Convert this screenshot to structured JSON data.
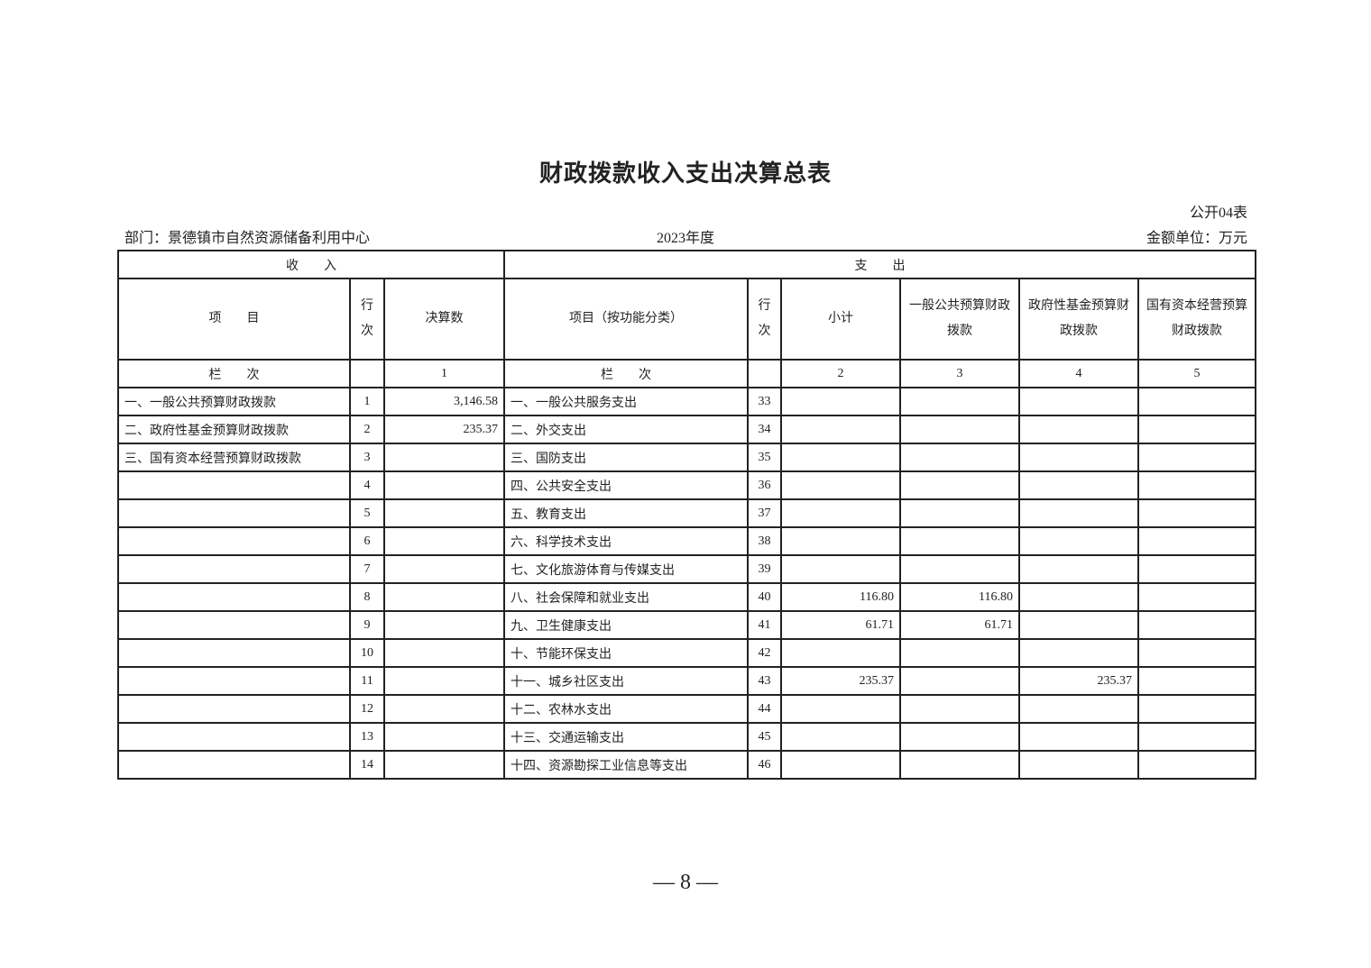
{
  "title": "财政拨款收入支出决算总表",
  "form_code": "公开04表",
  "department": "部门：景德镇市自然资源储备利用中心",
  "year": "2023年度",
  "unit": "金额单位：万元",
  "header": {
    "income": "收　　入",
    "expense": "支　　出",
    "item": "项　　目",
    "row_no": "行次",
    "amount": "决算数",
    "item_func": "项目（按功能分类）",
    "subtotal": "小计",
    "general": "一般公共预算财政拨款",
    "fund": "政府性基金预算财政拨款",
    "capital": "国有资本经营预算财政拨款",
    "col_label": "栏　　次",
    "col_nums": [
      "1",
      "2",
      "3",
      "4",
      "5"
    ]
  },
  "rows": [
    {
      "in_item": "一、一般公共预算财政拨款",
      "in_no": "1",
      "in_amt": "3,146.58",
      "ex_item": "一、一般公共服务支出",
      "ex_no": "33",
      "sub": "",
      "gen": "",
      "fund": "",
      "cap": ""
    },
    {
      "in_item": "二、政府性基金预算财政拨款",
      "in_no": "2",
      "in_amt": "235.37",
      "ex_item": "二、外交支出",
      "ex_no": "34",
      "sub": "",
      "gen": "",
      "fund": "",
      "cap": ""
    },
    {
      "in_item": "三、国有资本经营预算财政拨款",
      "in_no": "3",
      "in_amt": "",
      "ex_item": "三、国防支出",
      "ex_no": "35",
      "sub": "",
      "gen": "",
      "fund": "",
      "cap": ""
    },
    {
      "in_item": "",
      "in_no": "4",
      "in_amt": "",
      "ex_item": "四、公共安全支出",
      "ex_no": "36",
      "sub": "",
      "gen": "",
      "fund": "",
      "cap": ""
    },
    {
      "in_item": "",
      "in_no": "5",
      "in_amt": "",
      "ex_item": "五、教育支出",
      "ex_no": "37",
      "sub": "",
      "gen": "",
      "fund": "",
      "cap": ""
    },
    {
      "in_item": "",
      "in_no": "6",
      "in_amt": "",
      "ex_item": "六、科学技术支出",
      "ex_no": "38",
      "sub": "",
      "gen": "",
      "fund": "",
      "cap": ""
    },
    {
      "in_item": "",
      "in_no": "7",
      "in_amt": "",
      "ex_item": "七、文化旅游体育与传媒支出",
      "ex_no": "39",
      "sub": "",
      "gen": "",
      "fund": "",
      "cap": ""
    },
    {
      "in_item": "",
      "in_no": "8",
      "in_amt": "",
      "ex_item": "八、社会保障和就业支出",
      "ex_no": "40",
      "sub": "116.80",
      "gen": "116.80",
      "fund": "",
      "cap": ""
    },
    {
      "in_item": "",
      "in_no": "9",
      "in_amt": "",
      "ex_item": "九、卫生健康支出",
      "ex_no": "41",
      "sub": "61.71",
      "gen": "61.71",
      "fund": "",
      "cap": ""
    },
    {
      "in_item": "",
      "in_no": "10",
      "in_amt": "",
      "ex_item": "十、节能环保支出",
      "ex_no": "42",
      "sub": "",
      "gen": "",
      "fund": "",
      "cap": ""
    },
    {
      "in_item": "",
      "in_no": "11",
      "in_amt": "",
      "ex_item": "十一、城乡社区支出",
      "ex_no": "43",
      "sub": "235.37",
      "gen": "",
      "fund": "235.37",
      "cap": ""
    },
    {
      "in_item": "",
      "in_no": "12",
      "in_amt": "",
      "ex_item": "十二、农林水支出",
      "ex_no": "44",
      "sub": "",
      "gen": "",
      "fund": "",
      "cap": ""
    },
    {
      "in_item": "",
      "in_no": "13",
      "in_amt": "",
      "ex_item": "十三、交通运输支出",
      "ex_no": "45",
      "sub": "",
      "gen": "",
      "fund": "",
      "cap": ""
    },
    {
      "in_item": "",
      "in_no": "14",
      "in_amt": "",
      "ex_item": "十四、资源勘探工业信息等支出",
      "ex_no": "46",
      "sub": "",
      "gen": "",
      "fund": "",
      "cap": ""
    }
  ],
  "page_number": "— 8 —"
}
